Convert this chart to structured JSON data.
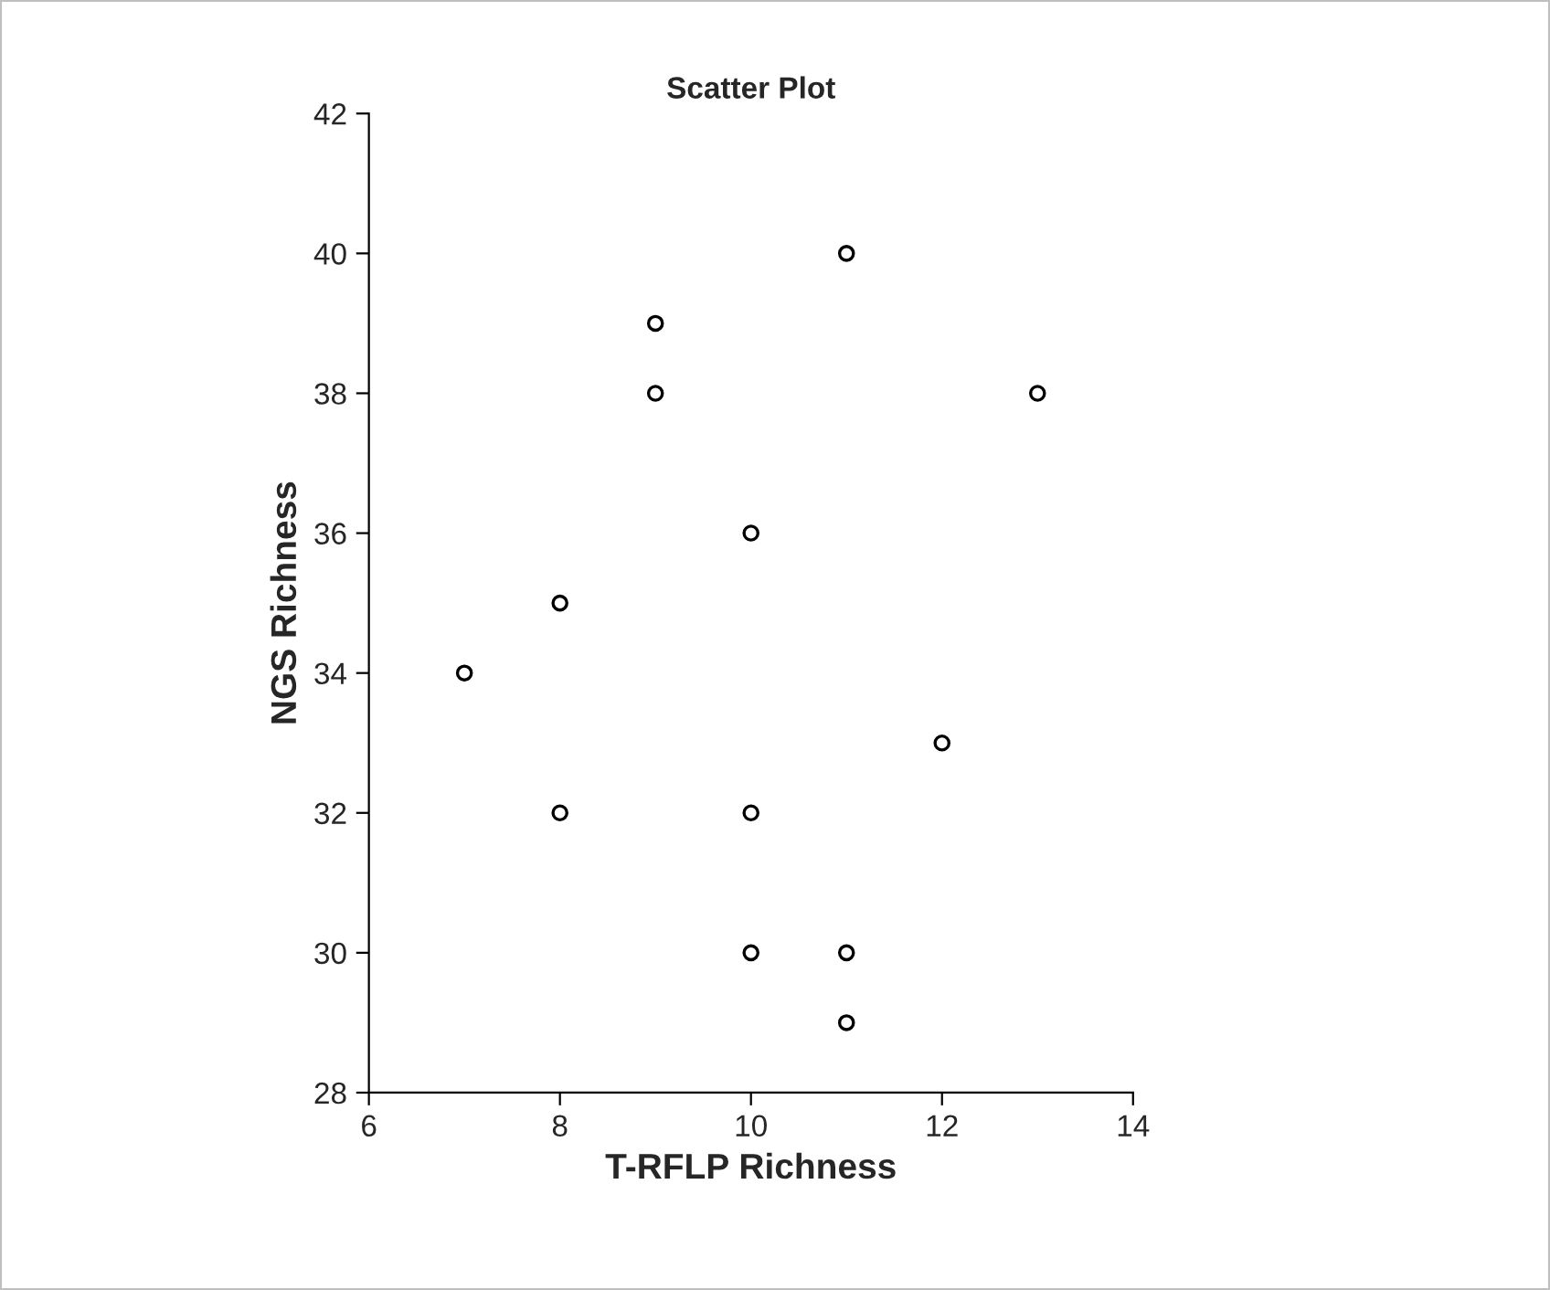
{
  "chart_data": {
    "type": "scatter",
    "title": "Scatter Plot",
    "xlabel": "T-RFLP Richness",
    "ylabel": "NGS Richness",
    "x": [
      7,
      8,
      8,
      9,
      9,
      10,
      10,
      10,
      11,
      11,
      11,
      12,
      13
    ],
    "values": [
      34,
      35,
      32,
      39,
      38,
      36,
      32,
      30,
      40,
      30,
      29,
      33,
      38
    ],
    "color": "#000000",
    "marker": "circle",
    "xlim": [
      6,
      14
    ],
    "xticks": [
      6,
      8,
      10,
      12,
      14
    ],
    "ylim": [
      28,
      42
    ],
    "yticks": [
      28,
      30,
      32,
      34,
      36,
      38,
      40,
      42
    ],
    "grid": false,
    "legend": false
  }
}
